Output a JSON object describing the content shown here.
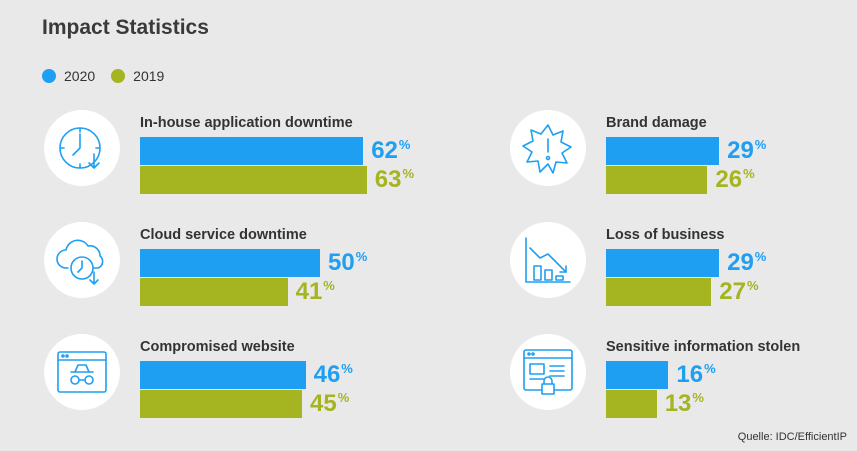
{
  "header": {
    "title": "Impact Statistics"
  },
  "legend": [
    {
      "label": "2020",
      "color": "#1e9ff2"
    },
    {
      "label": "2019",
      "color": "#a5b421"
    }
  ],
  "source": "Quelle: IDC/EfficientIP",
  "chart_data": {
    "type": "bar",
    "orientation": "horizontal",
    "title": "Impact Statistics",
    "value_suffix": "%",
    "series": [
      {
        "name": "2020",
        "color": "#1e9ff2"
      },
      {
        "name": "2019",
        "color": "#a5b421"
      }
    ],
    "groups": [
      {
        "label": "In-house application downtime",
        "icon": "clock-arrow-icon",
        "values": [
          62,
          63
        ]
      },
      {
        "label": "Cloud service downtime",
        "icon": "cloud-clock-icon",
        "values": [
          50,
          41
        ]
      },
      {
        "label": "Compromised website",
        "icon": "browser-spy-icon",
        "values": [
          46,
          45
        ]
      },
      {
        "label": "Brand damage",
        "icon": "alert-burst-icon",
        "values": [
          29,
          26
        ]
      },
      {
        "label": "Loss of business",
        "icon": "declining-chart-icon",
        "values": [
          29,
          27
        ]
      },
      {
        "label": "Sensitive information stolen",
        "icon": "browser-lock-icon",
        "values": [
          16,
          13
        ]
      }
    ]
  }
}
